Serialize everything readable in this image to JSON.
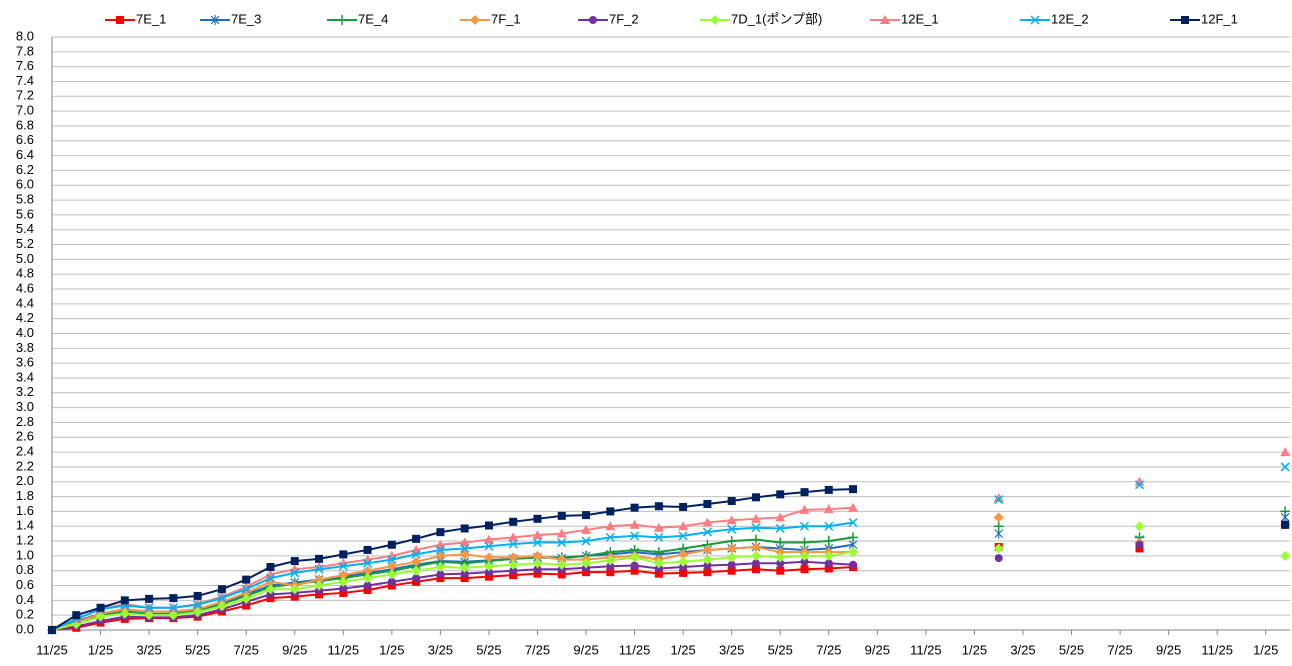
{
  "chart_data": {
    "type": "line",
    "x": [
      0,
      1,
      2,
      3,
      4,
      5,
      6,
      7,
      8,
      9,
      10,
      11,
      12,
      13,
      14,
      15,
      16,
      17,
      18,
      19,
      20,
      21,
      22,
      23,
      24,
      25,
      26,
      27,
      28,
      29,
      30,
      31,
      32,
      33,
      36,
      39,
      42,
      44.8,
      48,
      50.8
    ],
    "xlim": [
      0,
      51
    ],
    "xticks": [
      {
        "value": 0,
        "label": "11/25"
      },
      {
        "value": 2,
        "label": "1/25"
      },
      {
        "value": 4,
        "label": "3/25"
      },
      {
        "value": 6,
        "label": "5/25"
      },
      {
        "value": 8,
        "label": "7/25"
      },
      {
        "value": 10,
        "label": "9/25"
      },
      {
        "value": 12,
        "label": "11/25"
      },
      {
        "value": 14,
        "label": "1/25"
      },
      {
        "value": 16,
        "label": "3/25"
      },
      {
        "value": 18,
        "label": "5/25"
      },
      {
        "value": 20,
        "label": "7/25"
      },
      {
        "value": 22,
        "label": "9/25"
      },
      {
        "value": 24,
        "label": "11/25"
      },
      {
        "value": 26,
        "label": "1/25"
      },
      {
        "value": 28,
        "label": "3/25"
      },
      {
        "value": 30,
        "label": "5/25"
      },
      {
        "value": 32,
        "label": "7/25"
      },
      {
        "value": 34,
        "label": "9/25"
      },
      {
        "value": 36,
        "label": "11/25"
      },
      {
        "value": 38,
        "label": "1/25"
      },
      {
        "value": 40,
        "label": "3/25"
      },
      {
        "value": 42,
        "label": "5/25"
      },
      {
        "value": 44,
        "label": "7/25"
      },
      {
        "value": 46,
        "label": "9/25"
      },
      {
        "value": 48,
        "label": "11/25"
      },
      {
        "value": 50,
        "label": "1/25"
      }
    ],
    "ylim": [
      0,
      8
    ],
    "yticks": [
      {
        "value": 0,
        "label": "0.0"
      },
      0.2,
      0.4,
      0.6,
      0.8,
      {
        "value": 1,
        "label": "1.0"
      },
      1.2,
      1.4,
      1.6,
      1.8,
      {
        "value": 2,
        "label": "2.0"
      },
      2.2,
      2.4,
      2.6,
      2.8,
      {
        "value": 3,
        "label": "3.0"
      },
      3.2,
      3.4,
      3.6,
      3.8,
      {
        "value": 4,
        "label": "4.0"
      },
      4.2,
      4.4,
      4.6,
      4.8,
      {
        "value": 5,
        "label": "5.0"
      },
      5.2,
      5.4,
      5.6,
      5.8,
      {
        "value": 6,
        "label": "6.0"
      },
      6.2,
      6.4,
      6.6,
      6.8,
      {
        "value": 7,
        "label": "7.0"
      },
      7.2,
      7.4,
      7.6,
      7.8,
      {
        "value": 8,
        "label": "8.0"
      }
    ],
    "grid": true,
    "legend": "top",
    "series": [
      {
        "name": "7E_1",
        "color": "#ff0000",
        "marker": "square",
        "values": [
          0,
          0.03,
          0.1,
          0.15,
          0.16,
          0.16,
          0.18,
          0.25,
          0.33,
          0.43,
          0.45,
          0.48,
          0.5,
          0.54,
          0.6,
          0.65,
          0.7,
          0.7,
          0.72,
          0.74,
          0.76,
          0.75,
          0.78,
          0.78,
          0.8,
          0.76,
          0.77,
          0.78,
          0.8,
          0.82,
          0.8,
          0.82,
          0.83,
          0.85,
          null,
          1.12,
          null,
          1.1,
          null,
          1.42
        ]
      },
      {
        "name": "7E_3",
        "color": "#1f6fbf",
        "marker": "star",
        "values": [
          0,
          0.12,
          0.22,
          0.28,
          0.25,
          0.25,
          0.28,
          0.37,
          0.48,
          0.6,
          0.64,
          0.68,
          0.72,
          0.77,
          0.82,
          0.88,
          0.93,
          0.92,
          0.94,
          0.96,
          0.98,
          0.97,
          1.0,
          1.02,
          1.05,
          1.02,
          1.05,
          1.08,
          1.1,
          1.12,
          1.1,
          1.08,
          1.1,
          1.15,
          null,
          1.3,
          null,
          1.22,
          null,
          1.52
        ]
      },
      {
        "name": "7E_4",
        "color": "#1a9a3a",
        "marker": "plus",
        "values": [
          0,
          0.1,
          0.2,
          0.25,
          0.22,
          0.22,
          0.26,
          0.35,
          0.46,
          0.58,
          0.62,
          0.66,
          0.7,
          0.75,
          0.8,
          0.86,
          0.92,
          0.9,
          0.93,
          0.96,
          0.98,
          0.98,
          1.0,
          1.05,
          1.08,
          1.05,
          1.1,
          1.15,
          1.2,
          1.22,
          1.18,
          1.18,
          1.2,
          1.25,
          null,
          1.4,
          null,
          1.25,
          null,
          1.6
        ]
      },
      {
        "name": "7F_1",
        "color": "#f79646",
        "marker": "diamond",
        "values": [
          0,
          0.1,
          0.22,
          0.28,
          0.25,
          0.25,
          0.28,
          0.38,
          0.5,
          0.65,
          0.6,
          0.68,
          0.74,
          0.8,
          0.86,
          0.92,
          1.0,
          1.02,
          0.98,
          0.98,
          1.0,
          0.95,
          0.95,
          0.98,
          1.0,
          0.95,
          1.02,
          1.08,
          1.1,
          1.12,
          1.05,
          1.05,
          1.05,
          1.05,
          null,
          1.52,
          null,
          1.18,
          null,
          1.42
        ]
      },
      {
        "name": "7F_2",
        "color": "#7030a0",
        "marker": "circle",
        "values": [
          0,
          0.05,
          0.12,
          0.18,
          0.17,
          0.17,
          0.2,
          0.28,
          0.38,
          0.48,
          0.5,
          0.53,
          0.56,
          0.6,
          0.65,
          0.7,
          0.75,
          0.76,
          0.78,
          0.8,
          0.82,
          0.82,
          0.84,
          0.86,
          0.87,
          0.83,
          0.85,
          0.87,
          0.88,
          0.9,
          0.9,
          0.92,
          0.9,
          0.88,
          null,
          0.97,
          null,
          1.15,
          null,
          1.42
        ]
      },
      {
        "name": "7D_1(ポンプ部)",
        "color": "#99ff33",
        "marker": "diamond",
        "values": [
          0,
          0.08,
          0.18,
          0.22,
          0.2,
          0.2,
          0.24,
          0.32,
          0.42,
          0.55,
          0.55,
          0.6,
          0.65,
          0.7,
          0.75,
          0.8,
          0.85,
          0.84,
          0.86,
          0.88,
          0.9,
          0.88,
          0.9,
          0.94,
          0.98,
          0.9,
          0.92,
          0.95,
          0.98,
          1.0,
          0.98,
          1.0,
          1.0,
          1.05,
          null,
          1.1,
          null,
          1.4,
          null,
          1.0
        ]
      },
      {
        "name": "12E_1",
        "color": "#ff7c80",
        "marker": "triangle",
        "values": [
          0,
          0.15,
          0.28,
          0.35,
          0.3,
          0.3,
          0.35,
          0.45,
          0.58,
          0.75,
          0.82,
          0.85,
          0.9,
          0.95,
          1.0,
          1.08,
          1.15,
          1.18,
          1.22,
          1.25,
          1.28,
          1.3,
          1.35,
          1.4,
          1.42,
          1.38,
          1.4,
          1.45,
          1.48,
          1.5,
          1.52,
          1.62,
          1.63,
          1.65,
          null,
          1.78,
          null,
          2.0,
          null,
          2.4
        ]
      },
      {
        "name": "12E_2",
        "color": "#00b0f0",
        "marker": "x",
        "values": [
          0,
          0.15,
          0.28,
          0.33,
          0.3,
          0.3,
          0.34,
          0.43,
          0.55,
          0.7,
          0.77,
          0.82,
          0.86,
          0.9,
          0.95,
          1.02,
          1.08,
          1.1,
          1.13,
          1.16,
          1.18,
          1.18,
          1.2,
          1.25,
          1.27,
          1.25,
          1.27,
          1.32,
          1.36,
          1.38,
          1.37,
          1.4,
          1.4,
          1.45,
          null,
          1.76,
          null,
          1.96,
          null,
          2.2
        ]
      },
      {
        "name": "12F_1",
        "color": "#002060",
        "marker": "square",
        "values": [
          0,
          0.2,
          0.3,
          0.4,
          0.42,
          0.43,
          0.46,
          0.55,
          0.68,
          0.85,
          0.93,
          0.96,
          1.02,
          1.08,
          1.15,
          1.23,
          1.32,
          1.37,
          1.41,
          1.46,
          1.5,
          1.54,
          1.55,
          1.6,
          1.65,
          1.67,
          1.66,
          1.7,
          1.74,
          1.79,
          1.83,
          1.86,
          1.89,
          1.9,
          null,
          null,
          null,
          null,
          null,
          1.42
        ]
      }
    ]
  }
}
